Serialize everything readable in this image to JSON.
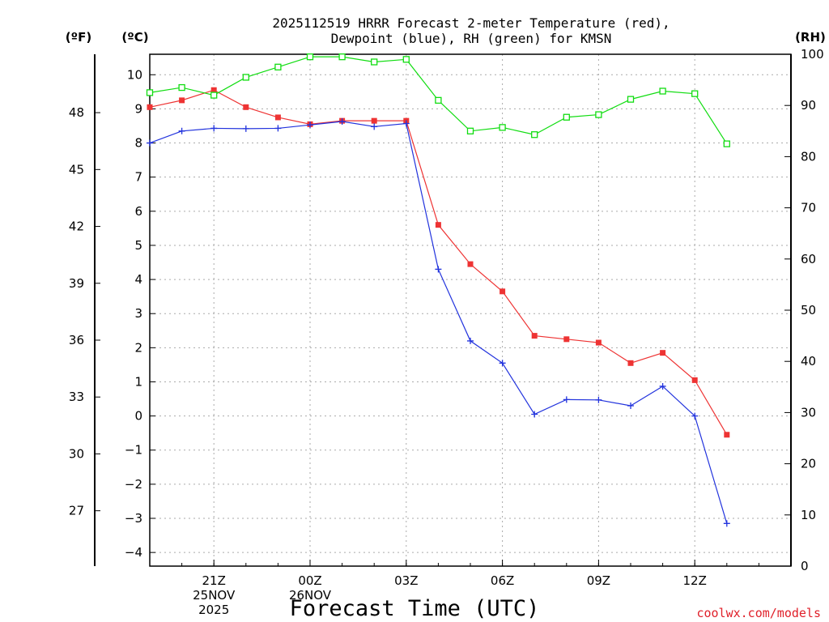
{
  "chart_data": {
    "type": "line",
    "title_line1": "2025112519 HRRR Forecast 2-meter Temperature (red),",
    "title_line2": "Dewpoint (blue), RH (green) for KMSN",
    "xlabel": "Forecast Time (UTC)",
    "units": {
      "fahrenheit": "(ºF)",
      "celsius": "(ºC)",
      "rh": "(RH)"
    },
    "credit": "coolwx.com/models",
    "x_hours": [
      -2,
      -1,
      0,
      1,
      2,
      3,
      4,
      5,
      6,
      7,
      8,
      9,
      10,
      11,
      12,
      13,
      14,
      15,
      16,
      17,
      18
    ],
    "x_range": [
      -2,
      18
    ],
    "x_ticks": [
      {
        "hour": 0,
        "label": "21Z",
        "sub1": "25NOV",
        "sub2": "2025"
      },
      {
        "hour": 3,
        "label": "00Z",
        "sub1": "26NOV",
        "sub2": ""
      },
      {
        "hour": 6,
        "label": "03Z",
        "sub1": "",
        "sub2": ""
      },
      {
        "hour": 9,
        "label": "06Z",
        "sub1": "",
        "sub2": ""
      },
      {
        "hour": 12,
        "label": "09Z",
        "sub1": "",
        "sub2": ""
      },
      {
        "hour": 15,
        "label": "12Z",
        "sub1": "",
        "sub2": ""
      }
    ],
    "celsius_range": [
      -4.4,
      10.6
    ],
    "celsius_ticks": [
      "-4",
      "-3",
      "-2",
      "-1",
      "0",
      "1",
      "2",
      "3",
      "4",
      "5",
      "6",
      "7",
      "8",
      "9",
      "10"
    ],
    "fahrenheit_ticks": [
      "27",
      "30",
      "33",
      "36",
      "39",
      "42",
      "45",
      "48"
    ],
    "rh_range": [
      0,
      100
    ],
    "rh_ticks": [
      "0",
      "10",
      "20",
      "30",
      "40",
      "50",
      "60",
      "70",
      "80",
      "90",
      "100"
    ],
    "series": [
      {
        "name": "Temperature",
        "color": "#ee3333",
        "axis": "celsius",
        "marker": "filled-square",
        "values": [
          9.05,
          9.25,
          9.55,
          9.05,
          8.75,
          8.55,
          8.65,
          8.65,
          8.65,
          5.6,
          4.45,
          3.65,
          2.35,
          2.25,
          2.15,
          1.55,
          1.85,
          1.05,
          -0.55
        ]
      },
      {
        "name": "Dewpoint",
        "color": "#2233dd",
        "axis": "celsius",
        "marker": "plus",
        "values": [
          8.0,
          8.35,
          8.43,
          8.42,
          8.43,
          8.53,
          8.63,
          8.48,
          8.57,
          4.3,
          2.2,
          1.55,
          0.05,
          0.48,
          0.47,
          0.3,
          0.87,
          0.0,
          -3.15
        ]
      },
      {
        "name": "RH",
        "color": "#11dd11",
        "axis": "rh",
        "marker": "open-square",
        "values": [
          92.5,
          93.5,
          92.0,
          95.5,
          97.5,
          99.5,
          99.5,
          98.5,
          99.0,
          91.0,
          85.0,
          85.7,
          84.3,
          87.7,
          88.2,
          91.2,
          92.8,
          92.3,
          82.5
        ]
      }
    ]
  }
}
